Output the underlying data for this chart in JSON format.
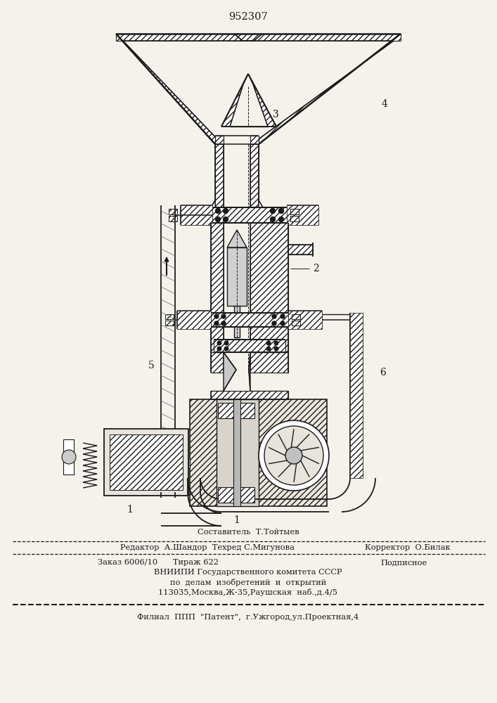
{
  "title": "952307",
  "bg_color": "#f5f2ec",
  "lc": "#1a1a1a",
  "footer": {
    "l1": "Составитель  Т.Тойтыев",
    "l2l": "Редактор  А.Шандор  Техред С.Мигунова",
    "l2r": "Корректор  О.Билак",
    "l3l": "Заказ 6006/10      Тираж 622",
    "l3r": "Подписное",
    "l4": "ВНИИПИ Государственного комитета СССР",
    "l5": "по  делам  изобретений  и  открытий",
    "l6": "113035,Москва,Ж-35,Раушская  наб.,д.4/5",
    "l7": "Филиал  ППП  \"Патент\",  г.Ужгород,ул.Проектная,4"
  }
}
